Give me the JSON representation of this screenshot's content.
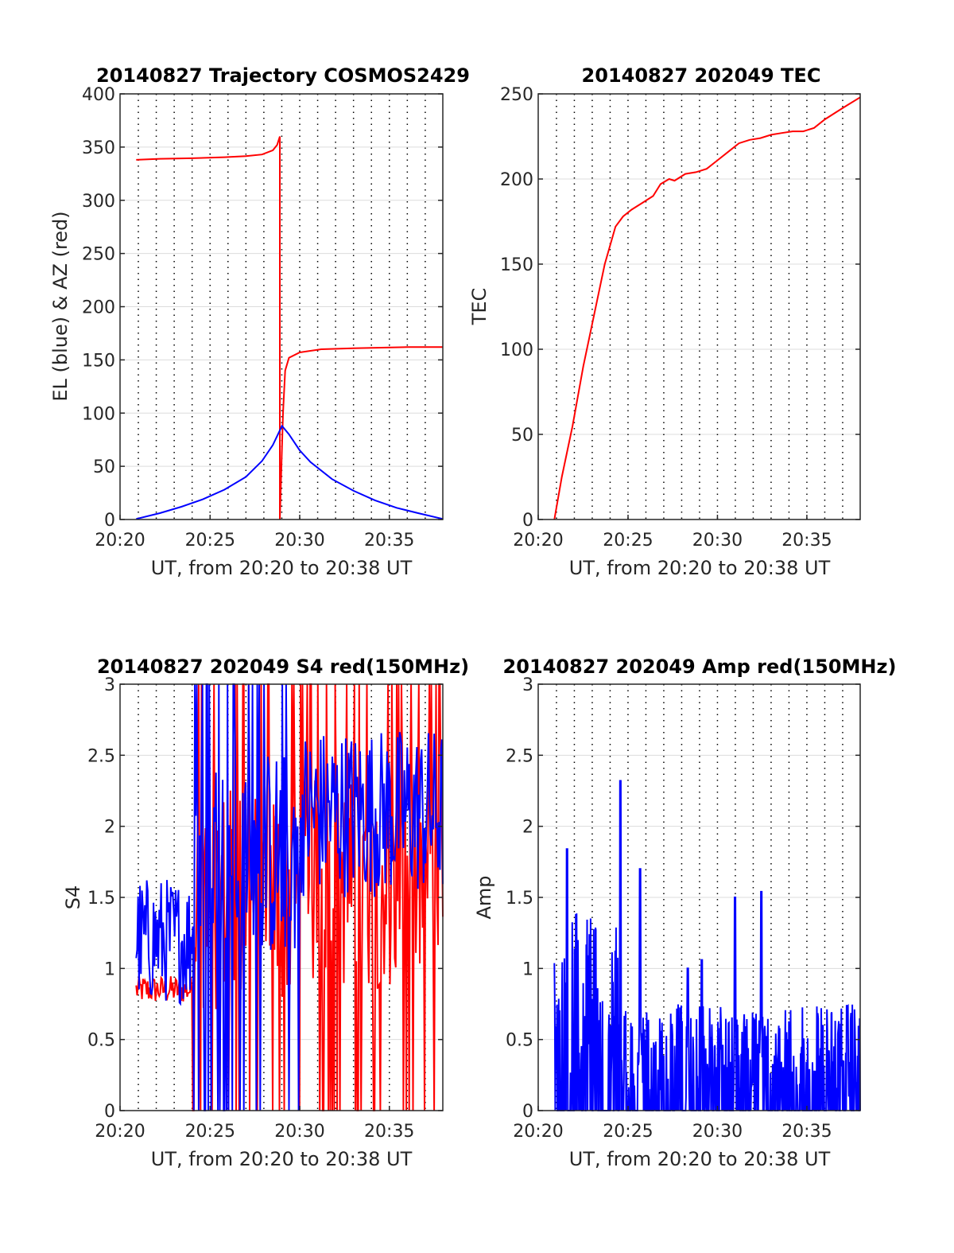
{
  "figure": {
    "background": "#ffffff",
    "colors": {
      "red": "#ff0000",
      "blue": "#0000ff",
      "grid": "#dcdcdc",
      "vgrid": "#000000",
      "axis": "#262626"
    }
  },
  "chart_data": [
    {
      "type": "line",
      "title": "20140827 Trajectory COSMOS2429",
      "xlabel": "UT, from 20:20 to 20:38 UT",
      "ylabel": "EL (blue) & AZ (red)",
      "xlim": [
        20.333,
        20.633
      ],
      "ylim": [
        0,
        400
      ],
      "xtick_values": [
        20.333,
        20.4167,
        20.5,
        20.5833
      ],
      "xtick_labels": [
        "20:20",
        "20:25",
        "20:30",
        "20:35"
      ],
      "yticks": [
        0,
        50,
        100,
        150,
        200,
        250,
        300,
        350,
        400
      ],
      "ytick_labels": [
        "0",
        "50",
        "100",
        "150",
        "200",
        "250",
        "300",
        "350",
        "400"
      ],
      "grid": true,
      "series": [
        {
          "color": "#ff0000",
          "segments": [
            [
              [
                20.348,
                338
              ],
              [
                20.37,
                339
              ],
              [
                20.4,
                339.5
              ],
              [
                20.43,
                340.5
              ],
              [
                20.45,
                341.5
              ],
              [
                20.465,
                343
              ],
              [
                20.475,
                347
              ],
              [
                20.479,
                352
              ],
              [
                20.4815,
                360
              ],
              [
                20.4815,
                0
              ]
            ],
            [
              [
                20.4815,
                0
              ],
              [
                20.483,
                50
              ],
              [
                20.4845,
                100
              ],
              [
                20.4865,
                140
              ],
              [
                20.49,
                152
              ],
              [
                20.5,
                157
              ],
              [
                20.52,
                160
              ],
              [
                20.55,
                161
              ],
              [
                20.6,
                162
              ],
              [
                20.633,
                162
              ]
            ]
          ]
        },
        {
          "color": "#0000ff",
          "segments": [
            [
              [
                20.348,
                0.5
              ],
              [
                20.37,
                6
              ],
              [
                20.39,
                12
              ],
              [
                20.41,
                19
              ],
              [
                20.43,
                28
              ],
              [
                20.45,
                40
              ],
              [
                20.465,
                55
              ],
              [
                20.475,
                70
              ],
              [
                20.4835,
                88
              ],
              [
                20.49,
                80
              ],
              [
                20.5,
                65
              ],
              [
                20.51,
                54
              ],
              [
                20.53,
                38
              ],
              [
                20.55,
                27
              ],
              [
                20.57,
                18
              ],
              [
                20.59,
                11
              ],
              [
                20.61,
                6
              ],
              [
                20.633,
                0.5
              ]
            ]
          ]
        }
      ]
    },
    {
      "type": "line",
      "title": "20140827 202049 TEC",
      "xlabel": "UT, from 20:20 to 20:38 UT",
      "ylabel": "TEC",
      "xlim": [
        20.333,
        20.633
      ],
      "ylim": [
        0,
        250
      ],
      "xtick_values": [
        20.333,
        20.4167,
        20.5,
        20.5833
      ],
      "xtick_labels": [
        "20:20",
        "20:25",
        "20:30",
        "20:35"
      ],
      "yticks": [
        0,
        50,
        100,
        150,
        200,
        250
      ],
      "ytick_labels": [
        "0",
        "50",
        "100",
        "150",
        "200",
        "250"
      ],
      "grid": true,
      "series": [
        {
          "color": "#ff0000",
          "segments": [
            [
              [
                20.348,
                0
              ],
              [
                20.355,
                25
              ],
              [
                20.365,
                55
              ],
              [
                20.375,
                90
              ],
              [
                20.385,
                120
              ],
              [
                20.395,
                150
              ],
              [
                20.405,
                172
              ],
              [
                20.412,
                178
              ],
              [
                20.42,
                182
              ],
              [
                20.43,
                186
              ],
              [
                20.44,
                190
              ],
              [
                20.447,
                197
              ],
              [
                20.455,
                200
              ],
              [
                20.46,
                199
              ],
              [
                20.47,
                203
              ],
              [
                20.48,
                204
              ],
              [
                20.49,
                206
              ],
              [
                20.5,
                211
              ],
              [
                20.51,
                216
              ],
              [
                20.52,
                221
              ],
              [
                20.53,
                223
              ],
              [
                20.54,
                224
              ],
              [
                20.55,
                226
              ],
              [
                20.56,
                227
              ],
              [
                20.57,
                228
              ],
              [
                20.58,
                228
              ],
              [
                20.59,
                230
              ],
              [
                20.6,
                235
              ],
              [
                20.61,
                239
              ],
              [
                20.62,
                243
              ],
              [
                20.633,
                248
              ]
            ]
          ]
        }
      ]
    },
    {
      "type": "line",
      "title": "20140827 202049 S4 red(150MHz)",
      "xlabel": "UT, from 20:20 to 20:38 UT",
      "ylabel": "S4",
      "xlim": [
        20.333,
        20.633
      ],
      "ylim": [
        0,
        3
      ],
      "xtick_values": [
        20.333,
        20.4167,
        20.5,
        20.5833
      ],
      "xtick_labels": [
        "20:20",
        "20:25",
        "20:30",
        "20:35"
      ],
      "yticks": [
        0,
        0.5,
        1,
        1.5,
        2,
        2.5,
        3
      ],
      "ytick_labels": [
        "0",
        "0.5",
        "1",
        "1.5",
        "2",
        "2.5",
        "3"
      ],
      "grid": true,
      "series": [
        {
          "color": "#ff0000",
          "sampled": true,
          "x_range": [
            20.348,
            20.633
          ],
          "n": 320,
          "regions": [
            {
              "x_end": 20.4,
              "base": 0.85,
              "spread": 0.2
            },
            {
              "x_end": 20.5,
              "base": 1.5,
              "spread": 1.6,
              "dropout": true
            },
            {
              "x_end": 20.633,
              "base": 1.6,
              "spread": 1.5,
              "dropout": true
            }
          ]
        },
        {
          "color": "#0000ff",
          "sampled": true,
          "x_range": [
            20.348,
            20.633
          ],
          "n": 320,
          "regions": [
            {
              "x_end": 20.4,
              "base": 1.2,
              "spread": 0.9
            },
            {
              "x_end": 20.5,
              "base": 1.8,
              "spread": 1.5,
              "dropout": true
            },
            {
              "x_end": 20.633,
              "base": 2.1,
              "spread": 1.2
            }
          ]
        }
      ]
    },
    {
      "type": "line",
      "title": "20140827 202049 Amp red(150MHz)",
      "xlabel": "UT, from 20:20 to 20:38 UT",
      "ylabel": "Amp",
      "xlim": [
        20.333,
        20.633
      ],
      "ylim": [
        0,
        3
      ],
      "xtick_values": [
        20.333,
        20.4167,
        20.5,
        20.5833
      ],
      "xtick_labels": [
        "20:20",
        "20:25",
        "20:30",
        "20:35"
      ],
      "yticks": [
        0,
        0.5,
        1,
        1.5,
        2,
        2.5,
        3
      ],
      "ytick_labels": [
        "0",
        "0.5",
        "1",
        "1.5",
        "2",
        "2.5",
        "3"
      ],
      "grid": true,
      "series": [
        {
          "color": "#0000ff",
          "sampled": true,
          "x_range": [
            20.348,
            20.633
          ],
          "n": 700,
          "regions": [
            {
              "x_end": 20.412,
              "base": 0.0,
              "spread": 1.45,
              "floor": true
            },
            {
              "x_end": 20.633,
              "base": 0.0,
              "spread": 0.75,
              "floor": true
            }
          ],
          "peaks": [
            [
              20.4095,
              2.32
            ],
            [
              20.36,
              1.84
            ],
            [
              20.428,
              1.7
            ],
            [
              20.5165,
              1.5
            ],
            [
              20.541,
              1.54
            ],
            [
              20.4855,
              1.06
            ],
            [
              20.4725,
              1.0
            ]
          ]
        }
      ]
    }
  ]
}
